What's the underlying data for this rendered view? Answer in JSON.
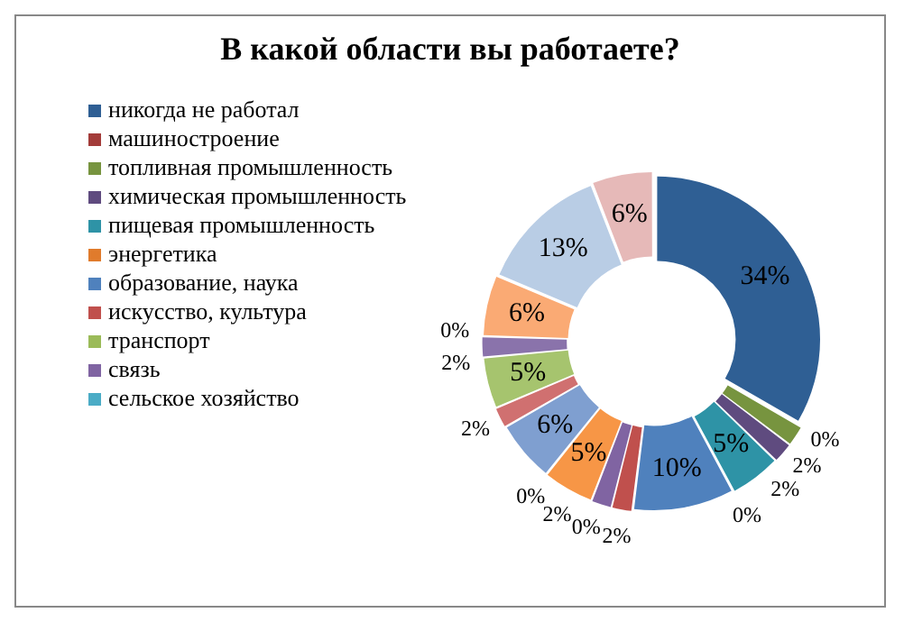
{
  "chart_data": {
    "type": "donut",
    "title": "В какой области вы работаете?",
    "categories": [
      "никогда не работал",
      "машиностроение",
      "топливная промышленность",
      "химическая промышленность",
      "пищевая промышленность",
      "энергетика",
      "образование, наука",
      "искусство, культура",
      "транспорт",
      "связь",
      "сельское хозяйство",
      null,
      null,
      null,
      null,
      null,
      null,
      null,
      null,
      null
    ],
    "values": [
      34,
      0,
      2,
      2,
      5,
      0,
      10,
      2,
      0,
      2,
      0,
      5,
      6,
      2,
      5,
      2,
      0,
      6,
      13,
      6
    ],
    "value_labels": [
      "34%",
      "0%",
      "2%",
      "2%",
      "5%",
      "0%",
      "10%",
      "2%",
      "0%",
      "2%",
      "0%",
      "5%",
      "6%",
      "2%",
      "5%",
      "2%",
      "0%",
      "6%",
      "13%",
      "6%"
    ],
    "colors": [
      "#2f5f94",
      "#a33c3a",
      "#77943f",
      "#5f4b7f",
      "#2e93a6",
      "#e07b2c",
      "#4f81bd",
      "#c0504d",
      "#9bbb59",
      "#8064a2",
      "#4bacc6",
      "#f79646",
      "#7f9fd0",
      "#d07070",
      "#a6c46e",
      "#8a73ab",
      "#78c4d8",
      "#faaa74",
      "#b9cde5",
      "#e6b9b8"
    ],
    "legend": "left"
  }
}
